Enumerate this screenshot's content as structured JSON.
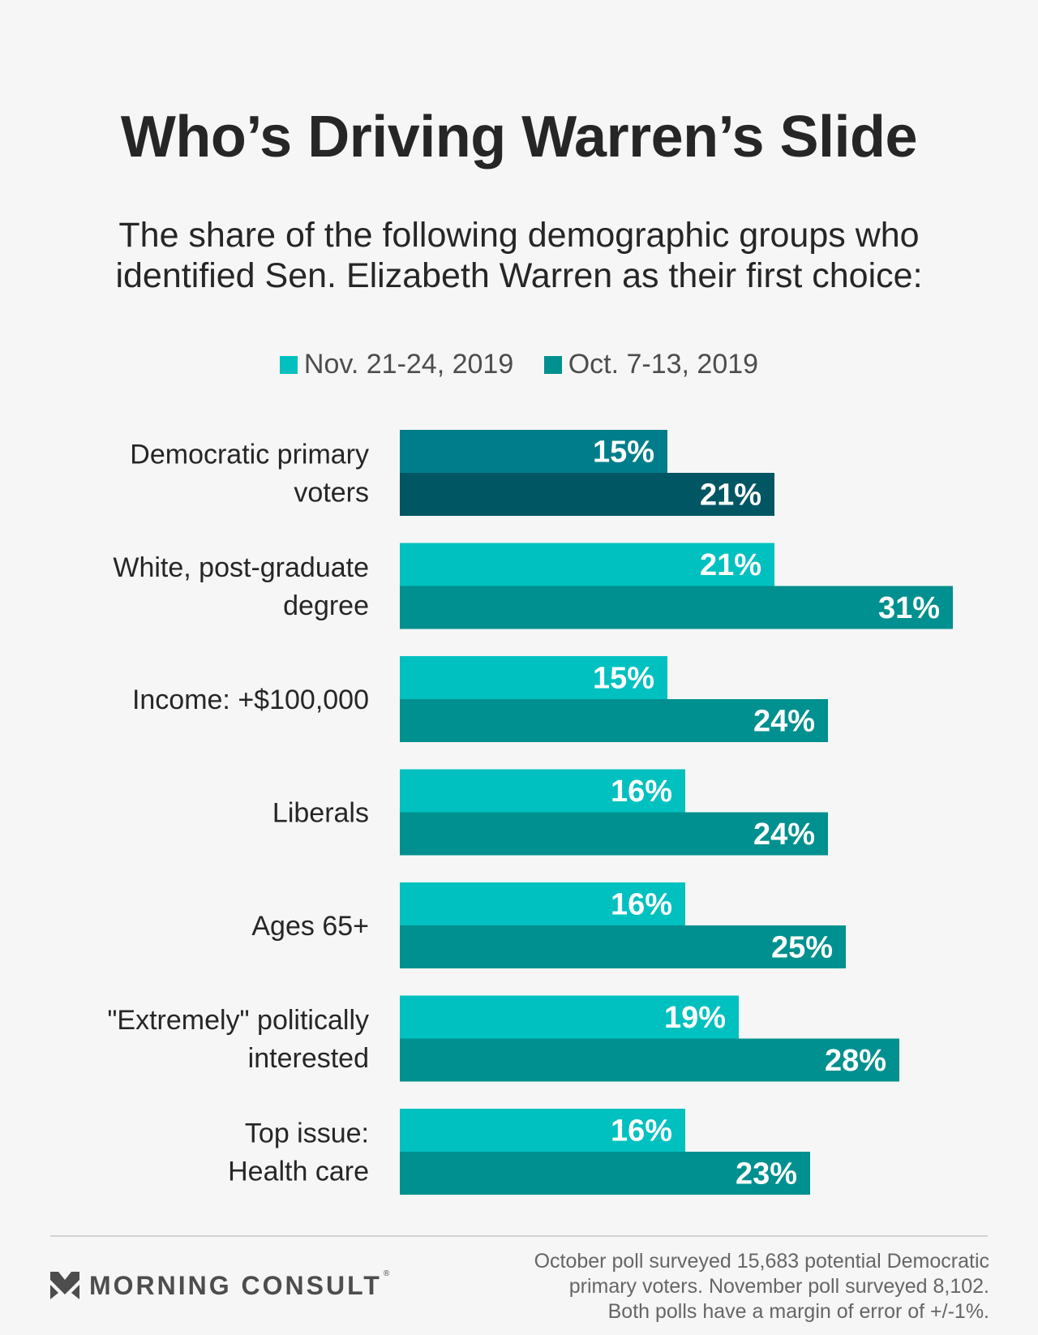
{
  "title": "Who’s Driving Warren’s Slide",
  "subtitle": "The share of the following demographic groups who identified Sen. Elizabeth Warren as their first choice:",
  "colors": {
    "nov": "#00c0c0",
    "oct": "#00908f",
    "nov_highlight": "#007d8a",
    "oct_highlight": "#005663",
    "label_text": "#ffffff"
  },
  "chart_data": {
    "type": "bar",
    "orientation": "horizontal",
    "categories": [
      [
        "Democratic primary",
        "voters"
      ],
      [
        "White, post-graduate",
        "degree"
      ],
      [
        "Income: +$100,000"
      ],
      [
        "Liberals"
      ],
      [
        "Ages 65+"
      ],
      [
        "\"Extremely\" politically",
        "interested"
      ],
      [
        "Top issue:",
        "Health care"
      ]
    ],
    "series": [
      {
        "name": "Nov. 21-24, 2019",
        "values": [
          15,
          21,
          15,
          16,
          16,
          19,
          16
        ],
        "labels": [
          "15%",
          "21%",
          "15%",
          "16%",
          "16%",
          "19%",
          "16%"
        ]
      },
      {
        "name": "Oct. 7-13, 2019",
        "values": [
          21,
          31,
          24,
          24,
          25,
          28,
          23
        ],
        "labels": [
          "21%",
          "31%",
          "24%",
          "24%",
          "25%",
          "28%",
          "23%"
        ]
      }
    ],
    "highlighted_category_index": 0,
    "legend": "top-center",
    "grid": false,
    "xlim": [
      0,
      31
    ]
  },
  "footer": {
    "brand": "MORNING CONSULT",
    "brand_mark": "®",
    "note_lines": [
      "October poll surveyed 15,683 potential Democratic",
      "primary voters. November poll surveyed 8,102.",
      "Both polls have a margin of error of +/-1%."
    ]
  }
}
